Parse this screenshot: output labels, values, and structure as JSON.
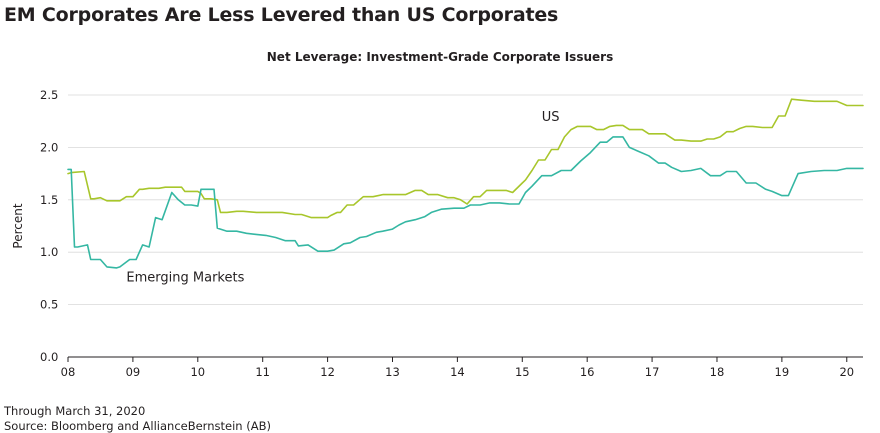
{
  "header": {
    "title": "EM Corporates Are Less Levered than US Corporates",
    "subtitle": "Net Leverage: Investment-Grade Corporate Issuers"
  },
  "footer": {
    "note": "Through March 31, 2020",
    "source": "Source: Bloomberg and AllianceBernstein (AB)"
  },
  "colors": {
    "us": "#a8c62b",
    "em": "#35b7a3",
    "grid": "#d9d9d9",
    "axis": "#231f20"
  },
  "chart_data": {
    "type": "line",
    "title": "Net Leverage: Investment-Grade Corporate Issuers",
    "xlabel": "",
    "ylabel": "Percent",
    "xlim": [
      2008.0,
      2020.25
    ],
    "ylim": [
      0,
      2.5
    ],
    "x_ticks": [
      2008,
      2009,
      2010,
      2011,
      2012,
      2013,
      2014,
      2015,
      2016,
      2017,
      2018,
      2019,
      2020
    ],
    "x_tick_labels": [
      "08",
      "09",
      "10",
      "11",
      "12",
      "13",
      "14",
      "15",
      "16",
      "17",
      "18",
      "19",
      "20"
    ],
    "y_ticks": [
      0,
      0.5,
      1.0,
      1.5,
      2.0,
      2.5
    ],
    "y_tick_labels": [
      "0.0",
      "0.5",
      "1.0",
      "1.5",
      "2.0",
      "2.5"
    ],
    "grid": "horizontal",
    "legend": "none",
    "series": [
      {
        "name": "US",
        "x": [
          2008.0,
          2008.05,
          2008.25,
          2008.35,
          2008.4,
          2008.5,
          2008.6,
          2008.65,
          2008.8,
          2008.9,
          2009.0,
          2009.1,
          2009.15,
          2009.25,
          2009.4,
          2009.5,
          2009.6,
          2009.75,
          2009.8,
          2009.9,
          2010.0,
          2010.05,
          2010.1,
          2010.2,
          2010.3,
          2010.35,
          2010.45,
          2010.6,
          2010.7,
          2010.9,
          2011.0,
          2011.2,
          2011.3,
          2011.5,
          2011.6,
          2011.75,
          2011.8,
          2012.0,
          2012.05,
          2012.15,
          2012.2,
          2012.3,
          2012.4,
          2012.55,
          2012.7,
          2012.85,
          2013.0,
          2013.1,
          2013.2,
          2013.35,
          2013.45,
          2013.55,
          2013.7,
          2013.85,
          2013.95,
          2014.05,
          2014.15,
          2014.25,
          2014.35,
          2014.45,
          2014.6,
          2014.75,
          2014.85,
          2015.0,
          2015.05,
          2015.15,
          2015.25,
          2015.35,
          2015.45,
          2015.55,
          2015.65,
          2015.75,
          2015.85,
          2016.05,
          2016.15,
          2016.25,
          2016.35,
          2016.45,
          2016.55,
          2016.65,
          2016.75,
          2016.85,
          2016.95,
          2017.05,
          2017.2,
          2017.35,
          2017.45,
          2017.6,
          2017.75,
          2017.85,
          2017.95,
          2018.05,
          2018.15,
          2018.25,
          2018.35,
          2018.45,
          2018.55,
          2018.7,
          2018.85,
          2018.95,
          2019.05,
          2019.15,
          2019.3,
          2019.5,
          2019.7,
          2019.85,
          2020.0,
          2020.15,
          2020.25
        ],
        "values": [
          1.75,
          1.76,
          1.77,
          1.51,
          1.51,
          1.52,
          1.49,
          1.49,
          1.49,
          1.53,
          1.53,
          1.6,
          1.6,
          1.61,
          1.61,
          1.62,
          1.62,
          1.62,
          1.58,
          1.58,
          1.58,
          1.56,
          1.51,
          1.51,
          1.5,
          1.38,
          1.38,
          1.39,
          1.39,
          1.38,
          1.38,
          1.38,
          1.38,
          1.36,
          1.36,
          1.33,
          1.33,
          1.33,
          1.35,
          1.38,
          1.38,
          1.45,
          1.45,
          1.53,
          1.53,
          1.55,
          1.55,
          1.55,
          1.55,
          1.59,
          1.59,
          1.55,
          1.55,
          1.52,
          1.52,
          1.5,
          1.46,
          1.53,
          1.53,
          1.59,
          1.59,
          1.59,
          1.57,
          1.66,
          1.69,
          1.78,
          1.88,
          1.88,
          1.98,
          1.98,
          2.1,
          2.17,
          2.2,
          2.2,
          2.17,
          2.17,
          2.2,
          2.21,
          2.21,
          2.17,
          2.17,
          2.17,
          2.13,
          2.13,
          2.13,
          2.07,
          2.07,
          2.06,
          2.06,
          2.08,
          2.08,
          2.1,
          2.15,
          2.15,
          2.18,
          2.2,
          2.2,
          2.19,
          2.19,
          2.3,
          2.3,
          2.46,
          2.45,
          2.44,
          2.44,
          2.44,
          2.4,
          2.4,
          2.4
        ]
      },
      {
        "name": "Emerging Markets",
        "x": [
          2008.0,
          2008.05,
          2008.1,
          2008.15,
          2008.3,
          2008.35,
          2008.5,
          2008.6,
          2008.75,
          2008.8,
          2008.95,
          2009.05,
          2009.15,
          2009.25,
          2009.35,
          2009.45,
          2009.6,
          2009.7,
          2009.8,
          2009.9,
          2010.0,
          2010.05,
          2010.15,
          2010.25,
          2010.3,
          2010.45,
          2010.6,
          2010.75,
          2010.9,
          2011.05,
          2011.2,
          2011.35,
          2011.5,
          2011.55,
          2011.7,
          2011.85,
          2012.0,
          2012.1,
          2012.25,
          2012.35,
          2012.5,
          2012.6,
          2012.75,
          2012.85,
          2013.0,
          2013.1,
          2013.2,
          2013.35,
          2013.5,
          2013.6,
          2013.75,
          2013.95,
          2014.1,
          2014.2,
          2014.35,
          2014.5,
          2014.65,
          2014.8,
          2014.95,
          2015.05,
          2015.15,
          2015.3,
          2015.45,
          2015.6,
          2015.75,
          2015.9,
          2016.05,
          2016.2,
          2016.3,
          2016.4,
          2016.55,
          2016.65,
          2016.8,
          2016.95,
          2017.1,
          2017.2,
          2017.3,
          2017.45,
          2017.6,
          2017.75,
          2017.9,
          2018.05,
          2018.15,
          2018.3,
          2018.45,
          2018.6,
          2018.75,
          2018.85,
          2019.0,
          2019.1,
          2019.25,
          2019.45,
          2019.65,
          2019.85,
          2020.0,
          2020.15,
          2020.25
        ],
        "values": [
          1.79,
          1.79,
          1.05,
          1.05,
          1.07,
          0.93,
          0.93,
          0.86,
          0.85,
          0.86,
          0.93,
          0.93,
          1.07,
          1.05,
          1.33,
          1.31,
          1.57,
          1.5,
          1.45,
          1.45,
          1.44,
          1.6,
          1.6,
          1.6,
          1.23,
          1.2,
          1.2,
          1.18,
          1.17,
          1.16,
          1.14,
          1.11,
          1.11,
          1.06,
          1.07,
          1.01,
          1.01,
          1.02,
          1.08,
          1.09,
          1.14,
          1.15,
          1.19,
          1.2,
          1.22,
          1.26,
          1.29,
          1.31,
          1.34,
          1.38,
          1.41,
          1.42,
          1.42,
          1.45,
          1.45,
          1.47,
          1.47,
          1.46,
          1.46,
          1.57,
          1.63,
          1.73,
          1.73,
          1.78,
          1.78,
          1.87,
          1.95,
          2.05,
          2.05,
          2.1,
          2.1,
          2.0,
          1.96,
          1.92,
          1.85,
          1.85,
          1.81,
          1.77,
          1.78,
          1.8,
          1.73,
          1.73,
          1.77,
          1.77,
          1.66,
          1.66,
          1.6,
          1.58,
          1.54,
          1.54,
          1.75,
          1.77,
          1.78,
          1.78,
          1.8,
          1.8,
          1.8
        ]
      }
    ],
    "annotations": [
      {
        "text": "US",
        "x": 2015.3,
        "y": 2.25,
        "series": 0
      },
      {
        "text": "Emerging Markets",
        "x": 2008.9,
        "y": 0.72,
        "series": 1
      }
    ]
  }
}
